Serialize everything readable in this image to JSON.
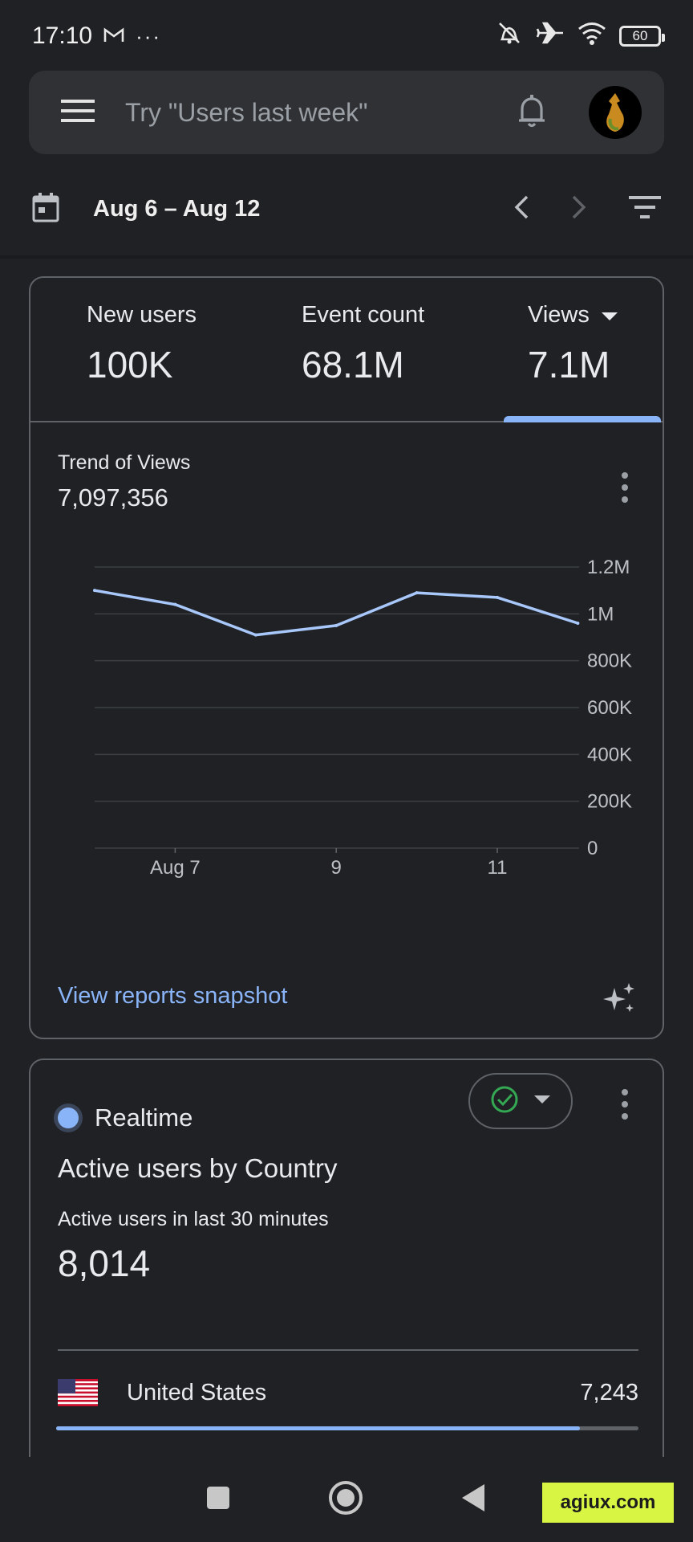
{
  "status_bar": {
    "time": "17:10",
    "battery": "60",
    "left_icons": [
      "gmail-icon",
      "more-icon"
    ],
    "right_icons": [
      "alarm-off-icon",
      "airplane-icon",
      "wifi-icon",
      "battery-icon"
    ]
  },
  "search": {
    "placeholder": "Try \"Users last week\""
  },
  "date_range": {
    "label": "Aug 6 – Aug 12"
  },
  "metrics": [
    {
      "name": "New users",
      "value": "100K"
    },
    {
      "name": "Event count",
      "value": "68.1M"
    },
    {
      "name": "Views",
      "value": "7.1M",
      "selected": true
    }
  ],
  "trend": {
    "title": "Trend of Views",
    "total": "7,097,356"
  },
  "chart_data": {
    "type": "line",
    "x": [
      "Aug 6",
      "Aug 7",
      "Aug 8",
      "Aug 9",
      "Aug 10",
      "Aug 11",
      "Aug 12"
    ],
    "x_tick_labels": [
      {
        "x": "Aug 7",
        "label": "Aug 7"
      },
      {
        "x": "Aug 9",
        "label": "9"
      },
      {
        "x": "Aug 11",
        "label": "11"
      }
    ],
    "series": [
      {
        "values": [
          1100000,
          1040000,
          910000,
          950000,
          1090000,
          1070000,
          960000
        ],
        "color": "#a8c7fa"
      }
    ],
    "ylim": [
      0,
      1200000
    ],
    "y_ticks": [
      {
        "value": 1200000,
        "label": "1.2M"
      },
      {
        "value": 1000000,
        "label": "1M"
      },
      {
        "value": 800000,
        "label": "800K"
      },
      {
        "value": 600000,
        "label": "600K"
      },
      {
        "value": 400000,
        "label": "400K"
      },
      {
        "value": 200000,
        "label": "200K"
      },
      {
        "value": 0,
        "label": "0"
      }
    ],
    "grid": true,
    "y_axis_position": "right"
  },
  "snapshot": {
    "link": "View reports snapshot"
  },
  "realtime": {
    "label": "Realtime",
    "title": "Active users by Country",
    "subtitle": "Active users in last 30 minutes",
    "count": "8,014",
    "countries": [
      {
        "name": "United States",
        "value": "7,243",
        "share": 0.9
      }
    ]
  },
  "watermark": {
    "badge": "agiux.com"
  },
  "colors": {
    "background": "#202124",
    "accent": "#8ab4f8",
    "line": "#a8c7fa",
    "success": "#34a853"
  }
}
